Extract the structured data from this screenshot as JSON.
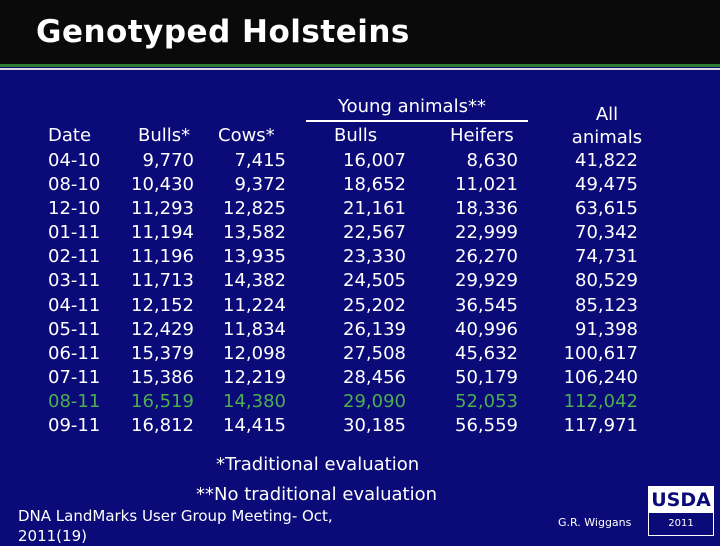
{
  "title": "Genotyped Holsteins",
  "headers": {
    "date": "Date",
    "bulls": "Bulls*",
    "cows": "Cows*",
    "young": "Young animals**",
    "young_bulls": "Bulls",
    "young_heifers": "Heifers",
    "all_line1": "All",
    "all_line2": "animals"
  },
  "rows": [
    {
      "date": "04-10",
      "bulls": "9,770",
      "cows": "7,415",
      "young_bulls": "16,007",
      "young_heifers": "8,630",
      "all": "41,822"
    },
    {
      "date": "08-10",
      "bulls": "10,430",
      "cows": "9,372",
      "young_bulls": "18,652",
      "young_heifers": "11,021",
      "all": "49,475"
    },
    {
      "date": "12-10",
      "bulls": "11,293",
      "cows": "12,825",
      "young_bulls": "21,161",
      "young_heifers": "18,336",
      "all": "63,615"
    },
    {
      "date": "01-11",
      "bulls": "11,194",
      "cows": "13,582",
      "young_bulls": "22,567",
      "young_heifers": "22,999",
      "all": "70,342"
    },
    {
      "date": "02-11",
      "bulls": "11,196",
      "cows": "13,935",
      "young_bulls": "23,330",
      "young_heifers": "26,270",
      "all": "74,731"
    },
    {
      "date": "03-11",
      "bulls": "11,713",
      "cows": "14,382",
      "young_bulls": "24,505",
      "young_heifers": "29,929",
      "all": "80,529"
    },
    {
      "date": "04-11",
      "bulls": "12,152",
      "cows": "11,224",
      "young_bulls": "25,202",
      "young_heifers": "36,545",
      "all": "85,123"
    },
    {
      "date": "05-11",
      "bulls": "12,429",
      "cows": "11,834",
      "young_bulls": "26,139",
      "young_heifers": "40,996",
      "all": "91,398"
    },
    {
      "date": "06-11",
      "bulls": "15,379",
      "cows": "12,098",
      "young_bulls": "27,508",
      "young_heifers": "45,632",
      "all": "100,617"
    },
    {
      "date": "07-11",
      "bulls": "15,386",
      "cows": "12,219",
      "young_bulls": "28,456",
      "young_heifers": "50,179",
      "all": "106,240"
    },
    {
      "date": "08-11",
      "bulls": "16,519",
      "cows": "14,380",
      "young_bulls": "29,090",
      "young_heifers": "52,053",
      "all": "112,042"
    },
    {
      "date": "09-11",
      "bulls": "16,812",
      "cows": "14,415",
      "young_bulls": "30,185",
      "young_heifers": "56,559",
      "all": "117,971"
    }
  ],
  "highlighted_row_index": 10,
  "colors": {
    "background": "#0a0a78",
    "text": "#ffffff",
    "highlight": "#4caf50"
  },
  "notes": {
    "traditional": "*Traditional evaluation",
    "no_traditional": "**No traditional evaluation"
  },
  "footer": {
    "meeting": "DNA LandMarks User Group Meeting- Oct, 2011(19)",
    "author": "G.R. Wiggans"
  },
  "logo": {
    "name": "USDA",
    "year": "2011"
  }
}
